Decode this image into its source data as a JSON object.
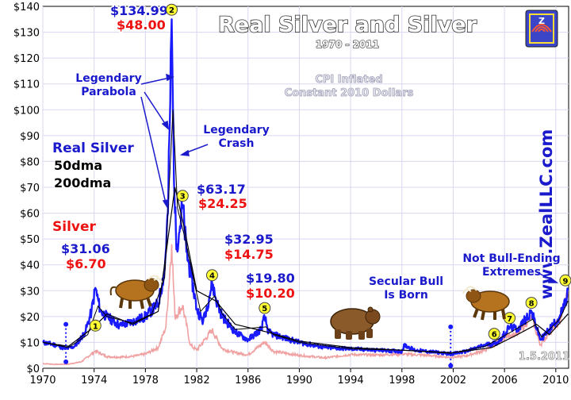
{
  "chart_data": {
    "type": "line",
    "title": "Real Silver and Silver",
    "subtitle": "1970 - 2011",
    "note": "CPI Inflated\nConstant 2010 Dollars",
    "watermark": "www.ZealLLC.com",
    "date_stamp": "1.5.2011",
    "ylim": [
      0,
      140
    ],
    "y_ticks": [
      "$0",
      "$10",
      "$20",
      "$30",
      "$40",
      "$50",
      "$60",
      "$70",
      "$80",
      "$90",
      "$100",
      "$110",
      "$120",
      "$130",
      "$140"
    ],
    "xlim": [
      1970,
      2011
    ],
    "x_ticks": [
      "1970",
      "1974",
      "1978",
      "1982",
      "1986",
      "1990",
      "1994",
      "1998",
      "2002",
      "2006",
      "2010"
    ],
    "legend": {
      "real_silver": "Real Silver",
      "dma50": "50dma",
      "dma200": "200dma",
      "silver": "Silver"
    },
    "colors": {
      "real_silver": "#1a1aff",
      "silver": "#f0a0a0",
      "dma50": "#000000",
      "dma200": "#000000",
      "annotation_blue": "#1a1acc",
      "annotation_red": "#ee1111",
      "marker_fill": "#ffff33",
      "grid": "#d8d8f0"
    },
    "series": [
      {
        "name": "Real Silver",
        "points": [
          [
            1970,
            10
          ],
          [
            1971,
            9
          ],
          [
            1971.8,
            7.5
          ],
          [
            1972.5,
            8.5
          ],
          [
            1973.3,
            14
          ],
          [
            1973.8,
            22
          ],
          [
            1974.1,
            31.06
          ],
          [
            1974.5,
            22
          ],
          [
            1975,
            20
          ],
          [
            1976,
            16.5
          ],
          [
            1977,
            18
          ],
          [
            1978,
            20
          ],
          [
            1979,
            25
          ],
          [
            1979.5,
            38
          ],
          [
            1979.75,
            60
          ],
          [
            1979.9,
            95
          ],
          [
            1980.05,
            134.99
          ],
          [
            1980.15,
            100
          ],
          [
            1980.3,
            60
          ],
          [
            1980.45,
            48
          ],
          [
            1980.7,
            55
          ],
          [
            1980.9,
            63.17
          ],
          [
            1981.2,
            45
          ],
          [
            1981.6,
            35
          ],
          [
            1982,
            23
          ],
          [
            1982.5,
            18
          ],
          [
            1983,
            28
          ],
          [
            1983.2,
            32.95
          ],
          [
            1983.6,
            25
          ],
          [
            1984,
            20
          ],
          [
            1985,
            14
          ],
          [
            1986,
            11
          ],
          [
            1987,
            15
          ],
          [
            1987.3,
            19.8
          ],
          [
            1987.6,
            14
          ],
          [
            1988,
            13
          ],
          [
            1990,
            10
          ],
          [
            1992,
            8
          ],
          [
            1994,
            7.5
          ],
          [
            1996,
            7
          ],
          [
            1998,
            6.5
          ],
          [
            1998.2,
            9
          ],
          [
            1999,
            7
          ],
          [
            2001,
            6
          ],
          [
            2001.8,
            5.5
          ],
          [
            2003,
            6.5
          ],
          [
            2004.5,
            9
          ],
          [
            2005.5,
            10
          ],
          [
            2006.4,
            16
          ],
          [
            2007,
            15
          ],
          [
            2008.1,
            22
          ],
          [
            2008.8,
            11
          ],
          [
            2009.5,
            15
          ],
          [
            2010.3,
            20
          ],
          [
            2010.75,
            25
          ],
          [
            2010.95,
            30
          ]
        ]
      },
      {
        "name": "Silver",
        "points": [
          [
            1970,
            1.8
          ],
          [
            1971,
            1.5
          ],
          [
            1972,
            1.6
          ],
          [
            1973,
            2.5
          ],
          [
            1974.1,
            6.7
          ],
          [
            1975,
            4.5
          ],
          [
            1976,
            4.3
          ],
          [
            1977,
            4.6
          ],
          [
            1978,
            5.5
          ],
          [
            1979,
            8
          ],
          [
            1979.6,
            16
          ],
          [
            1980.05,
            48
          ],
          [
            1980.3,
            20
          ],
          [
            1980.9,
            24.25
          ],
          [
            1981.5,
            9
          ],
          [
            1982,
            7
          ],
          [
            1983.2,
            14.75
          ],
          [
            1984,
            7.5
          ],
          [
            1985,
            6
          ],
          [
            1986,
            5.2
          ],
          [
            1987.3,
            10.2
          ],
          [
            1988,
            6.5
          ],
          [
            1990,
            5
          ],
          [
            1992,
            4
          ],
          [
            1994,
            5.3
          ],
          [
            1996,
            5.1
          ],
          [
            1998,
            5.5
          ],
          [
            2000,
            5
          ],
          [
            2001.8,
            4.2
          ],
          [
            2003,
            4.8
          ],
          [
            2004.5,
            7
          ],
          [
            2006.4,
            13
          ],
          [
            2007,
            13
          ],
          [
            2008.1,
            20
          ],
          [
            2008.8,
            9
          ],
          [
            2009.5,
            14
          ],
          [
            2010.3,
            18
          ],
          [
            2010.95,
            30
          ]
        ]
      },
      {
        "name": "50dma",
        "points": [
          [
            1970,
            10
          ],
          [
            1972,
            8
          ],
          [
            1973.5,
            13
          ],
          [
            1974.3,
            24
          ],
          [
            1975,
            20
          ],
          [
            1977,
            17.5
          ],
          [
            1978.5,
            21
          ],
          [
            1979.5,
            35
          ],
          [
            1980.15,
            100
          ],
          [
            1980.5,
            62
          ],
          [
            1981,
            52
          ],
          [
            1981.6,
            38
          ],
          [
            1982.3,
            22
          ],
          [
            1983.4,
            28
          ],
          [
            1984,
            21
          ],
          [
            1985,
            15
          ],
          [
            1987.4,
            16
          ],
          [
            1988,
            13
          ],
          [
            1990,
            10
          ],
          [
            1994,
            7.5
          ],
          [
            1998,
            7
          ],
          [
            2001.8,
            5.8
          ],
          [
            2004.5,
            8.5
          ],
          [
            2006.5,
            14
          ],
          [
            2008.2,
            19
          ],
          [
            2008.9,
            12
          ],
          [
            2010.3,
            19
          ],
          [
            2010.95,
            26
          ]
        ]
      },
      {
        "name": "200dma",
        "points": [
          [
            1970,
            10
          ],
          [
            1972,
            8.5
          ],
          [
            1974,
            16
          ],
          [
            1975,
            21
          ],
          [
            1977,
            17
          ],
          [
            1979,
            22
          ],
          [
            1980.3,
            70
          ],
          [
            1981,
            55
          ],
          [
            1982,
            30
          ],
          [
            1983.5,
            26
          ],
          [
            1985,
            17
          ],
          [
            1987.5,
            14
          ],
          [
            1990,
            10.5
          ],
          [
            1994,
            8
          ],
          [
            1998,
            7
          ],
          [
            2002,
            6
          ],
          [
            2005,
            8
          ],
          [
            2007,
            13
          ],
          [
            2008.5,
            17
          ],
          [
            2009.5,
            13
          ],
          [
            2010.95,
            21
          ]
        ]
      }
    ],
    "annotations": {
      "p1_blue": "$31.06",
      "p1_red": "$6.70",
      "p2_blue": "$134.99",
      "p2_red": "$48.00",
      "p3_blue": "$63.17",
      "p3_red": "$24.25",
      "p4_blue": "$32.95",
      "p4_red": "$14.75",
      "p5_blue": "$19.80",
      "p5_red": "$10.20",
      "parabola": "Legendary\nParabola",
      "crash": "Legendary\nCrash",
      "secular": "Secular Bull\nIs Born",
      "extremes": "Not Bull-Ending\nExtremes"
    },
    "markers": [
      {
        "label": "1",
        "x": 1974.1,
        "y": 16.5
      },
      {
        "label": "2",
        "x": 1980.05,
        "y": 138.7
      },
      {
        "label": "3",
        "x": 1980.9,
        "y": 66.7
      },
      {
        "label": "4",
        "x": 1983.2,
        "y": 36
      },
      {
        "label": "5",
        "x": 1987.3,
        "y": 23.3
      },
      {
        "label": "6",
        "x": 2005.2,
        "y": 13.3
      },
      {
        "label": "7",
        "x": 2006.4,
        "y": 19.4
      },
      {
        "label": "8",
        "x": 2008.1,
        "y": 25.3
      },
      {
        "label": "9",
        "x": 2010.75,
        "y": 34
      }
    ]
  }
}
